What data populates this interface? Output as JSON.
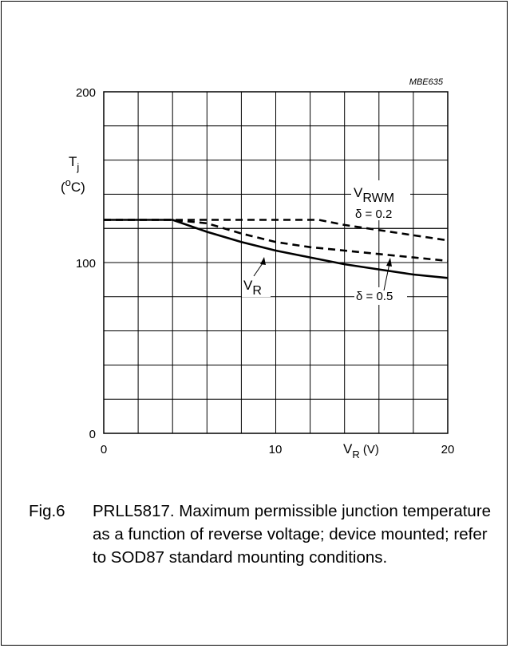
{
  "chart_data": {
    "type": "line",
    "code": "MBE635",
    "xlabel_main": "V",
    "xlabel_sub": "R",
    "xlabel_unit": " (V)",
    "ylabel_main": "T",
    "ylabel_sub": "j",
    "ylabel_unit_open": "(",
    "ylabel_unit_sup": "o",
    "ylabel_unit_close": "C)",
    "xlim": [
      0,
      20
    ],
    "ylim": [
      0,
      200
    ],
    "x_ticks": [
      "0",
      "10",
      "20"
    ],
    "y_ticks": [
      "0",
      "100",
      "200"
    ],
    "grid": true,
    "series": [
      {
        "name": "VR",
        "style": "solid",
        "x": [
          0,
          4,
          6,
          8,
          10,
          12,
          14,
          16,
          18,
          20
        ],
        "y": [
          125,
          125,
          118,
          112,
          107,
          103,
          99,
          96,
          93,
          91
        ]
      },
      {
        "name": "δ = 0.5",
        "style": "dashed",
        "x": [
          0,
          4,
          6,
          8,
          10,
          12,
          14,
          16,
          18,
          20
        ],
        "y": [
          125,
          125,
          123,
          117,
          112,
          109,
          107,
          105,
          103,
          101
        ]
      },
      {
        "name": "VRWM δ = 0.2",
        "style": "dashed",
        "x": [
          0,
          4,
          6,
          8,
          10,
          12,
          12.5,
          14,
          16,
          18,
          20
        ],
        "y": [
          125,
          125,
          125,
          125,
          125,
          125,
          125,
          122,
          119,
          116,
          113
        ]
      }
    ],
    "annotations": {
      "vrwm_main": "V",
      "vrwm_sub": "RWM",
      "delta02": "δ = 0.2",
      "vr_main": "V",
      "vr_sub": "R",
      "delta05": "δ = 0.5"
    }
  },
  "caption": {
    "fig": "Fig.6",
    "text": "PRLL5817. Maximum permissible junction temperature as a function of reverse voltage; device mounted; refer to SOD87 standard mounting conditions."
  }
}
